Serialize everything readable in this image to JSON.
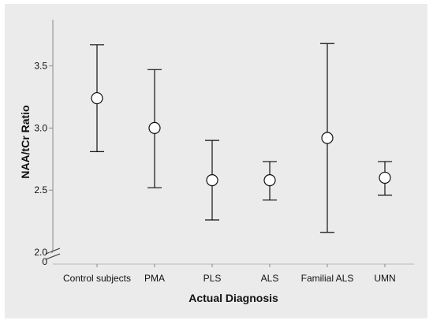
{
  "chart_data": {
    "type": "error_bar",
    "xlabel": "Actual Diagnosis",
    "ylabel": "NAA/tCr Ratio",
    "categories": [
      "Control subjects",
      "PMA",
      "PLS",
      "ALS",
      "Familial ALS",
      "UMN"
    ],
    "means": [
      3.24,
      3.0,
      2.58,
      2.58,
      2.92,
      2.6
    ],
    "upper": [
      3.67,
      3.47,
      2.9,
      2.73,
      3.68,
      2.73
    ],
    "lower": [
      2.81,
      2.52,
      2.26,
      2.42,
      2.16,
      2.46
    ],
    "y_ticks": [
      "3.5",
      "3.0",
      "2.5",
      "2.0"
    ],
    "y_zero_label": "0",
    "ylim": [
      2.0,
      3.8
    ],
    "axis_break": true,
    "grid": false,
    "colors": {
      "background": "#ffffff",
      "plot_area": "#ebebeb",
      "ink": "#111111"
    }
  }
}
